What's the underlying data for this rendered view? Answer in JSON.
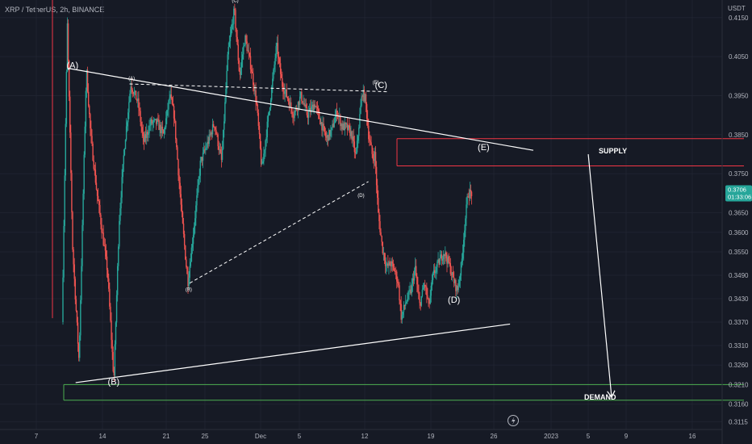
{
  "header": {
    "title": "XRP / TetherUS, 2h, BINANCE",
    "currency": "USDT"
  },
  "price_tag": {
    "value": "0.3706",
    "countdown": "01:33:06"
  },
  "colors": {
    "bg": "#161a25",
    "up": "#26a69a",
    "down": "#ef5350",
    "wave": "#ffffff",
    "supply": "#f23645",
    "demand": "#4caf50",
    "price_tag": "#26a69a"
  },
  "chart_data": {
    "type": "candlestick",
    "title": "XRP / TetherUS, 2h, BINANCE",
    "ylabel": "USDT",
    "ylim": [
      0.3095,
      0.4195
    ],
    "x_ticks": [
      "7",
      "14",
      "21",
      "25",
      "Dec",
      "5",
      "12",
      "19",
      "26",
      "2023",
      "5",
      "9",
      "16"
    ],
    "y_ticks": [
      "0.4150",
      "0.4050",
      "0.3950",
      "0.3850",
      "0.3750",
      "0.3650",
      "0.3600",
      "0.3550",
      "0.3490",
      "0.3430",
      "0.3370",
      "0.3310",
      "0.3260",
      "0.3210",
      "0.3160",
      "0.3115"
    ],
    "last_price": 0.3706,
    "price_path": [
      [
        9,
        0.337
      ],
      [
        9.5,
        0.413
      ],
      [
        10,
        0.356
      ],
      [
        10.6,
        0.327
      ],
      [
        11.3,
        0.402
      ],
      [
        11.7,
        0.385
      ],
      [
        12.3,
        0.37
      ],
      [
        12.8,
        0.36
      ],
      [
        13.3,
        0.35
      ],
      [
        13.9,
        0.322
      ],
      [
        14.4,
        0.363
      ],
      [
        14.9,
        0.382
      ],
      [
        15.5,
        0.398
      ],
      [
        16.2,
        0.393
      ],
      [
        16.7,
        0.383
      ],
      [
        17.4,
        0.388
      ],
      [
        18,
        0.388
      ],
      [
        18.6,
        0.385
      ],
      [
        19.2,
        0.395
      ],
      [
        19.6,
        0.39
      ],
      [
        20.3,
        0.365
      ],
      [
        20.9,
        0.347
      ],
      [
        21.5,
        0.362
      ],
      [
        22.1,
        0.378
      ],
      [
        22.8,
        0.383
      ],
      [
        23.4,
        0.388
      ],
      [
        24.1,
        0.378
      ],
      [
        24.7,
        0.406
      ],
      [
        25.3,
        0.417
      ],
      [
        25.8,
        0.4
      ],
      [
        26.3,
        0.41
      ],
      [
        26.9,
        0.402
      ],
      [
        27.4,
        0.393
      ],
      [
        27.9,
        0.376
      ],
      [
        28.4,
        0.387
      ],
      [
        28.8,
        0.396
      ],
      [
        29.3,
        0.408
      ],
      [
        29.8,
        0.398
      ],
      [
        30.4,
        0.394
      ],
      [
        30.9,
        0.39
      ],
      [
        31.6,
        0.395
      ],
      [
        32.2,
        0.39
      ],
      [
        32.9,
        0.393
      ],
      [
        33.5,
        0.388
      ],
      [
        34,
        0.384
      ],
      [
        34.5,
        0.386
      ],
      [
        35,
        0.391
      ],
      [
        35.5,
        0.387
      ],
      [
        35.9,
        0.387
      ],
      [
        36.4,
        0.385
      ],
      [
        36.8,
        0.379
      ],
      [
        37.1,
        0.388
      ],
      [
        37.4,
        0.396
      ],
      [
        37.7,
        0.394
      ],
      [
        38,
        0.385
      ],
      [
        38.4,
        0.379
      ],
      [
        38.6,
        0.38
      ],
      [
        38.9,
        0.365
      ],
      [
        39.3,
        0.356
      ],
      [
        39.7,
        0.351
      ],
      [
        40.1,
        0.352
      ],
      [
        40.5,
        0.35
      ],
      [
        40.8,
        0.347
      ],
      [
        41.1,
        0.338
      ],
      [
        41.5,
        0.342
      ],
      [
        42,
        0.345
      ],
      [
        42.4,
        0.351
      ],
      [
        42.8,
        0.341
      ],
      [
        43.3,
        0.347
      ],
      [
        43.7,
        0.341
      ],
      [
        44.1,
        0.349
      ],
      [
        44.6,
        0.352
      ],
      [
        45.1,
        0.355
      ],
      [
        45.6,
        0.352
      ],
      [
        46,
        0.348
      ],
      [
        46.4,
        0.345
      ],
      [
        46.8,
        0.352
      ],
      [
        47.1,
        0.362
      ],
      [
        47.4,
        0.37
      ],
      [
        47.7,
        0.37
      ]
    ],
    "annotations": {
      "supply_zone": {
        "label": "SUPPLY",
        "y": [
          0.377,
          0.384
        ]
      },
      "demand_zone": {
        "label": "DEMAND",
        "y": [
          0.317,
          0.321
        ]
      },
      "waves_large": [
        {
          "label": "(A)",
          "x": 9.9,
          "y": 0.402
        },
        {
          "label": "(B)",
          "x": 13.8,
          "y": 0.321
        },
        {
          "label": "(C)",
          "x": 39.1,
          "y": 0.397
        },
        {
          "label": "(D)",
          "x": 46.0,
          "y": 0.342
        },
        {
          "label": "(E)",
          "x": 48.8,
          "y": 0.381
        }
      ],
      "waves_small": [
        {
          "label": "(A)",
          "x": 15.5,
          "y": 0.399
        },
        {
          "label": "(B)",
          "x": 20.9,
          "y": 0.345
        },
        {
          "label": "(C)",
          "x": 25.3,
          "y": 0.419
        },
        {
          "label": "(D)",
          "x": 37.2,
          "y": 0.369
        },
        {
          "label": "(E)",
          "x": 38.6,
          "y": 0.398
        }
      ],
      "trendline_upper": [
        [
          9.5,
          0.402
        ],
        [
          53.5,
          0.381
        ]
      ],
      "trendline_lower": [
        [
          10.2,
          0.3215
        ],
        [
          51.3,
          0.3365
        ]
      ],
      "dashed_upper": [
        [
          15.3,
          0.398
        ],
        [
          39.8,
          0.396
        ]
      ],
      "dashed_lower": [
        [
          21,
          0.347
        ],
        [
          37.9,
          0.373
        ]
      ],
      "projection_arrow": [
        [
          58.7,
          0.38
        ],
        [
          60.9,
          0.318
        ]
      ]
    }
  }
}
